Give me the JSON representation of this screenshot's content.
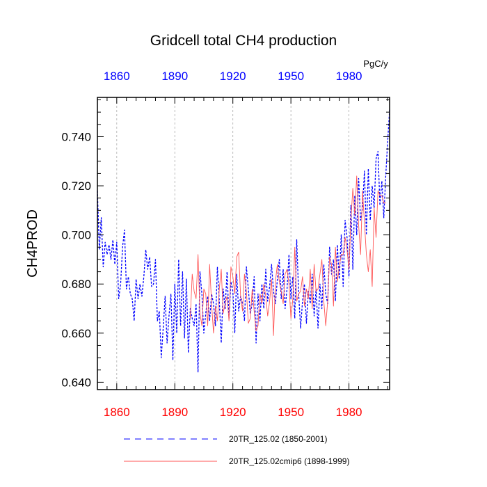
{
  "chart_data": {
    "type": "line",
    "title": "Gridcell total CH4 production",
    "ylabel": "CH4PROD",
    "units": "PgC/y",
    "xlim": [
      1850,
      2001
    ],
    "ylim": [
      0.637,
      0.756
    ],
    "x_ticks": [
      1860,
      1890,
      1920,
      1950,
      1980
    ],
    "x_tick_labels": [
      "1860",
      "1890",
      "1920",
      "1950",
      "1980"
    ],
    "y_ticks": [
      0.64,
      0.66,
      0.68,
      0.7,
      0.72,
      0.74
    ],
    "y_tick_labels": [
      "0.640",
      "0.660",
      "0.680",
      "0.700",
      "0.720",
      "0.740"
    ],
    "colors": {
      "series1": "#0000ff",
      "series2": "#ff5555",
      "bottom_ticks": "#ff0000",
      "top_ticks": "#0000ff",
      "grid": "#aaaaaa"
    },
    "series": [
      {
        "name": "20TR_125.02 (1850-2001)",
        "style": "dashed",
        "x_start": 1850,
        "values": [
          0.718,
          0.694,
          0.707,
          0.687,
          0.697,
          0.692,
          0.696,
          0.69,
          0.698,
          0.688,
          0.697,
          0.674,
          0.68,
          0.695,
          0.702,
          0.678,
          0.683,
          0.676,
          0.674,
          0.665,
          0.682,
          0.674,
          0.68,
          0.675,
          0.683,
          0.694,
          0.686,
          0.691,
          0.679,
          0.68,
          0.69,
          0.665,
          0.669,
          0.65,
          0.662,
          0.675,
          0.656,
          0.667,
          0.676,
          0.649,
          0.68,
          0.66,
          0.69,
          0.663,
          0.685,
          0.658,
          0.682,
          0.652,
          0.67,
          0.666,
          0.663,
          0.672,
          0.644,
          0.685,
          0.676,
          0.66,
          0.668,
          0.675,
          0.665,
          0.676,
          0.672,
          0.663,
          0.687,
          0.673,
          0.656,
          0.678,
          0.67,
          0.685,
          0.666,
          0.681,
          0.677,
          0.66,
          0.684,
          0.669,
          0.675,
          0.672,
          0.665,
          0.687,
          0.678,
          0.668,
          0.672,
          0.683,
          0.656,
          0.676,
          0.665,
          0.68,
          0.67,
          0.686,
          0.673,
          0.679,
          0.688,
          0.677,
          0.672,
          0.682,
          0.69,
          0.674,
          0.686,
          0.67,
          0.678,
          0.692,
          0.674,
          0.683,
          0.666,
          0.698,
          0.676,
          0.662,
          0.673,
          0.68,
          0.664,
          0.677,
          0.672,
          0.684,
          0.667,
          0.678,
          0.662,
          0.68,
          0.67,
          0.688,
          0.676,
          0.672,
          0.695,
          0.684,
          0.69,
          0.673,
          0.696,
          0.682,
          0.7,
          0.679,
          0.706,
          0.699,
          0.683,
          0.712,
          0.686,
          0.716,
          0.7,
          0.723,
          0.706,
          0.711,
          0.726,
          0.7,
          0.727,
          0.706,
          0.72,
          0.711,
          0.731,
          0.734,
          0.712,
          0.722,
          0.707,
          0.724,
          0.738,
          0.751
        ]
      },
      {
        "name": "20TR_125.02cmip6 (1898-1999)",
        "style": "solid",
        "x_start": 1898,
        "values": [
          0.666,
          0.684,
          0.677,
          0.674,
          0.692,
          0.668,
          0.663,
          0.678,
          0.676,
          0.663,
          0.688,
          0.672,
          0.66,
          0.671,
          0.665,
          0.678,
          0.686,
          0.668,
          0.672,
          0.675,
          0.665,
          0.687,
          0.683,
          0.676,
          0.691,
          0.693,
          0.675,
          0.669,
          0.684,
          0.677,
          0.664,
          0.666,
          0.678,
          0.669,
          0.661,
          0.663,
          0.676,
          0.672,
          0.68,
          0.675,
          0.667,
          0.673,
          0.682,
          0.659,
          0.681,
          0.688,
          0.681,
          0.677,
          0.672,
          0.684,
          0.686,
          0.68,
          0.666,
          0.674,
          0.695,
          0.673,
          0.676,
          0.677,
          0.683,
          0.671,
          0.678,
          0.674,
          0.686,
          0.67,
          0.688,
          0.677,
          0.678,
          0.684,
          0.69,
          0.673,
          0.663,
          0.673,
          0.691,
          0.688,
          0.671,
          0.695,
          0.681,
          0.687,
          0.692,
          0.692,
          0.699,
          0.694,
          0.686,
          0.706,
          0.719,
          0.708,
          0.724,
          0.704,
          0.692,
          0.718,
          0.705,
          0.692,
          0.685,
          0.694,
          0.679,
          0.711,
          0.699,
          0.718,
          0.716,
          0.716,
          0.713,
          0.713
        ]
      }
    ]
  },
  "legend": {
    "series1_label": "20TR_125.02 (1850-2001)",
    "series2_label": "20TR_125.02cmip6 (1898-1999)"
  }
}
